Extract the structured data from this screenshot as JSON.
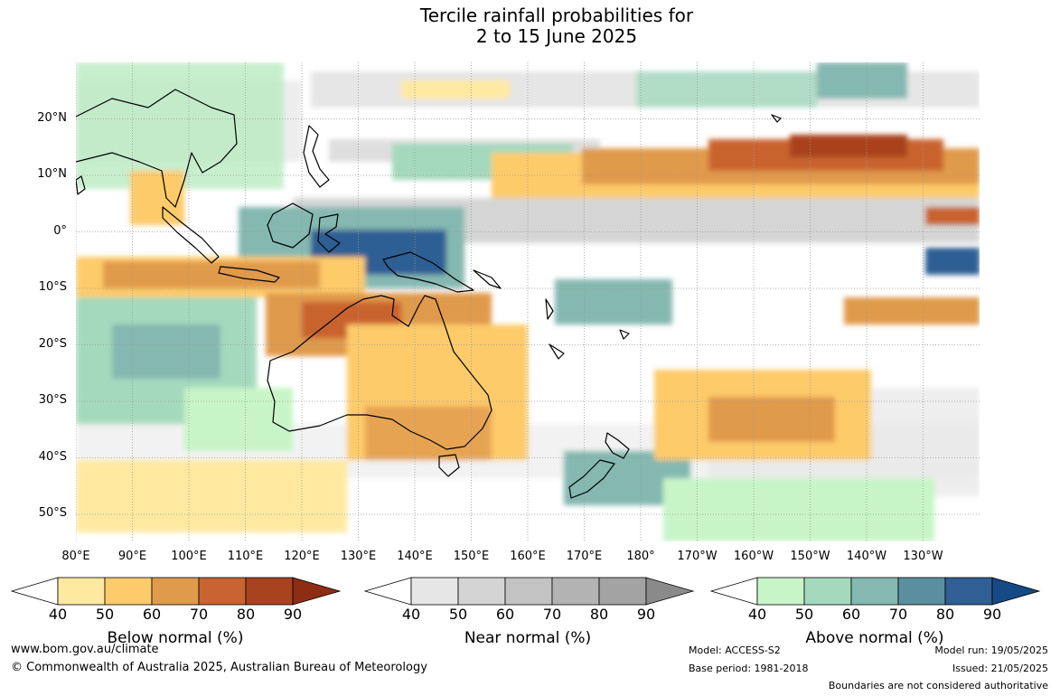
{
  "title": {
    "line1": "Tercile rainfall probabilities for",
    "line2": "2 to 15 June 2025"
  },
  "lat_labels": [
    "20°N",
    "10°N",
    "0°",
    "10°S",
    "20°S",
    "30°S",
    "40°S",
    "50°S"
  ],
  "lon_labels": [
    "80°E",
    "90°E",
    "100°E",
    "110°E",
    "120°E",
    "130°E",
    "140°E",
    "150°E",
    "160°E",
    "170°E",
    "180°",
    "170°W",
    "160°W",
    "150°W",
    "140°W",
    "130°W"
  ],
  "colorbars": [
    {
      "label": "Below normal (%)",
      "ticks": [
        "40",
        "50",
        "60",
        "70",
        "80",
        "90"
      ],
      "colors": [
        "#ffe9a1",
        "#fdcb6b",
        "#e09a4c",
        "#c9632f",
        "#a9421f",
        "#8c2d14"
      ]
    },
    {
      "label": "Near normal (%)",
      "ticks": [
        "40",
        "50",
        "60",
        "70",
        "80",
        "90"
      ],
      "colors": [
        "#e6e6e6",
        "#d4d4d4",
        "#c3c3c3",
        "#b3b3b3",
        "#a3a3a3",
        "#8a8a8a"
      ]
    },
    {
      "label": "Above normal (%)",
      "ticks": [
        "40",
        "50",
        "60",
        "70",
        "80",
        "90"
      ],
      "colors": [
        "#c7f5c7",
        "#a4d9bd",
        "#84b8b0",
        "#5a8fa0",
        "#2f5f94",
        "#154a85"
      ]
    }
  ],
  "footer": {
    "website": "www.bom.gov.au/climate",
    "copyright": "© Commonwealth of Australia 2025, Australian Bureau of Meteorology",
    "model": "Model: ACCESS-S2",
    "base_period": "Base period: 1981-2018",
    "model_run": "Model run: 19/05/2025",
    "issued": "Issued: 21/05/2025",
    "disclaimer": "Boundaries are not considered authoritative"
  }
}
